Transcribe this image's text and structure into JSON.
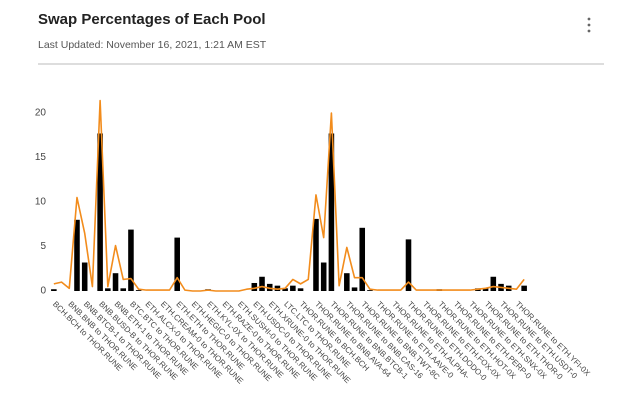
{
  "chart_data": {
    "type": "bar_line",
    "title": "Swap Percentages of Each Pool",
    "subtitle": "Last Updated: November 16, 2021, 1:21 AM EST",
    "categories": [
      "BCH.BCH to THOR.RUNE",
      null,
      "BNB.BNB to THOR.RUNE",
      null,
      "BNB.BTCB-1 to THOR.RUNE",
      null,
      "BNB.BUSD-B to THOR.RUNE",
      null,
      "BNB.ETH-1 to THOR.RUNE",
      null,
      "BTC.BTC to THOR.RUNE",
      null,
      "ETH.ALCX-0 to THOR.RUNE",
      null,
      "ETH.CREAM-0 to THOR.RUNE",
      null,
      "ETH.ETH to THOR.RUNE",
      null,
      "ETH.HEGIC-0 to THOR.RUNE",
      null,
      "ETH.KYL-0X to THOR.RUNE",
      null,
      "ETH.RAZE-0 to THOR.RUNE",
      null,
      "ETH.SUSHI-0 to THOR.RUNE",
      null,
      "ETH.USDC-0 to THOR.RUNE",
      null,
      "ETH.XRUNE-0 to THOR.RUNE",
      null,
      "LTC.LTC to THOR.RUNE",
      null,
      "THOR.RUNE to BCH.BCH",
      null,
      "THOR.RUNE to BNB.AVA-64",
      null,
      "THOR.RUNE to BNB.BTCB-1",
      null,
      "THOR.RUNE to BNB.CAS-16",
      null,
      "THOR.RUNE to BNB.TWT-8C",
      null,
      "THOR.RUNE to ETH.AAVE-0",
      null,
      "THOR.RUNE to ETH.ALPHA-",
      null,
      "THOR.RUNE to ETH.DODO-0",
      null,
      "THOR.RUNE to ETH.FOX-0X",
      null,
      "THOR.RUNE to ETH.HOT-0X",
      null,
      "THOR.RUNE to ETH.PERP-0",
      null,
      "THOR.RUNE to ETH.SNX-0X",
      null,
      "THOR.RUNE to ETH.THOR-0",
      null,
      "THOR.RUNE to ETH.USDT-0",
      null,
      "THOR.RUNE to ETH.YFI-0X",
      null
    ],
    "series": [
      {
        "type": "bar",
        "color": "#000000",
        "values": [
          0.2,
          0,
          0,
          8.0,
          3.2,
          0,
          17.7,
          0.3,
          2.0,
          0.3,
          6.9,
          0.1,
          0,
          0,
          0,
          0,
          6.0,
          0,
          0,
          0,
          0.2,
          0,
          0,
          0,
          0,
          0,
          0.9,
          1.6,
          0.8,
          0.6,
          0.3,
          0.6,
          0.3,
          0,
          8.1,
          3.2,
          17.7,
          0,
          2.0,
          0.4,
          7.1,
          0.1,
          0,
          0,
          0,
          0,
          5.8,
          0,
          0,
          0,
          0.2,
          0,
          0,
          0,
          0,
          0.3,
          0.3,
          1.6,
          0.8,
          0.6,
          0,
          0.6
        ]
      },
      {
        "type": "line",
        "color": "#f28c1c",
        "values": [
          0.8,
          1.0,
          0.3,
          10.5,
          6.5,
          0.5,
          21.4,
          0.5,
          5.1,
          1.3,
          1.4,
          0.2,
          0.1,
          0.1,
          0.1,
          0.1,
          1.5,
          0.1,
          0,
          0,
          0.1,
          0,
          0,
          0,
          0,
          0.2,
          0.3,
          0.5,
          0.3,
          0.2,
          0.3,
          1.3,
          0.8,
          1.3,
          10.8,
          6.0,
          20.0,
          0.6,
          4.9,
          1.5,
          1.5,
          0.2,
          0.1,
          0.1,
          0.1,
          0.1,
          1.0,
          0.1,
          0.1,
          0.1,
          0.1,
          0.1,
          0.1,
          0.1,
          0.1,
          0.2,
          0.3,
          0.5,
          0.4,
          0.3,
          0.2,
          1.3
        ]
      }
    ],
    "ylim": [
      0,
      22
    ],
    "yticks": [
      0,
      5,
      10,
      15,
      20
    ],
    "grid": false
  }
}
